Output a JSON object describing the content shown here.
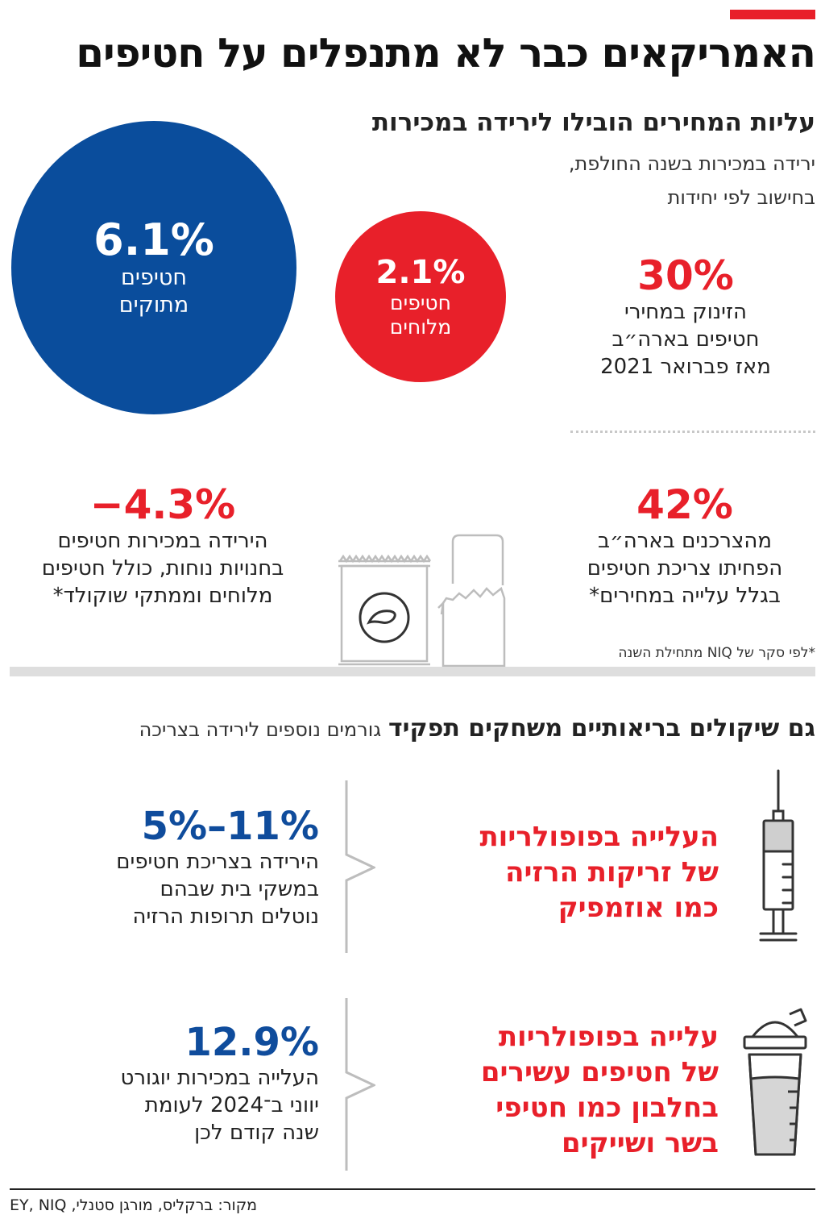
{
  "header": {
    "title": "האמריקאים כבר לא מתנפלים על חטיפים",
    "accent_color": "#e8202a"
  },
  "section1": {
    "title": "עליות המחירים הובילו לירידה במכירות",
    "desc_line1": "ירידה במכירות בשנה החולפת,",
    "desc_line2": "בחישוב לפי יחידות",
    "sweet": {
      "value": "6.1%",
      "label_line1": "חטיפים",
      "label_line2": "מתוקים",
      "color": "#0a4d9c"
    },
    "salty": {
      "value": "2.1%",
      "label_line1": "חטיפים",
      "label_line2": "מלוחים",
      "color": "#e8202a"
    },
    "price_jump": {
      "value": "30%",
      "line1": "הזינוק במחירי",
      "line2": "חטיפים בארה״ב",
      "line3": "מאז פברואר 2021"
    },
    "consumers": {
      "value": "42%",
      "line1": "מהצרכנים בארה״ב",
      "line2": "הפחיתו צריכת חטיפים",
      "line3": "בגלל עלייה במחירים*"
    },
    "convenience": {
      "value": "−4.3%",
      "line1": "הירידה במכירות חטיפים",
      "line2": "בחנויות נוחות, כולל חטיפים",
      "line3": "מלוחים וממתקי שוקולד*"
    },
    "footnote": "*לפי סקר של NIQ מתחילת השנה"
  },
  "section2": {
    "title_bold": "גם שיקולים בריאותיים משחקים תפקיד",
    "title_light": "גורמים נוספים לירידה בצריכה",
    "factor1": {
      "line1": "העלייה בפופולריות",
      "line2": "של זריקות הרזיה",
      "line3": "כמו אוזמפיק",
      "icon": "syringe-icon"
    },
    "stat1": {
      "value": "5%–11%",
      "line1": "הירידה בצריכת חטיפים",
      "line2": "במשקי בית שבהם",
      "line3": "נוטלים תרופות הרזיה"
    },
    "factor2": {
      "line1": "עלייה בפופולריות",
      "line2": "של חטיפים עשירים",
      "line3": "בחלבון כמו חטיפי",
      "line4": "בשר ושייקים",
      "icon": "shaker-icon"
    },
    "stat2": {
      "value": "12.9%",
      "line1": "העלייה במכירות יוגורט",
      "line2": "יווני ב־2024 לעומת",
      "line3": "שנה קודם לכן"
    }
  },
  "source": "מקור: ברקליס, מורגן סטנלי, EY, NIQ"
}
